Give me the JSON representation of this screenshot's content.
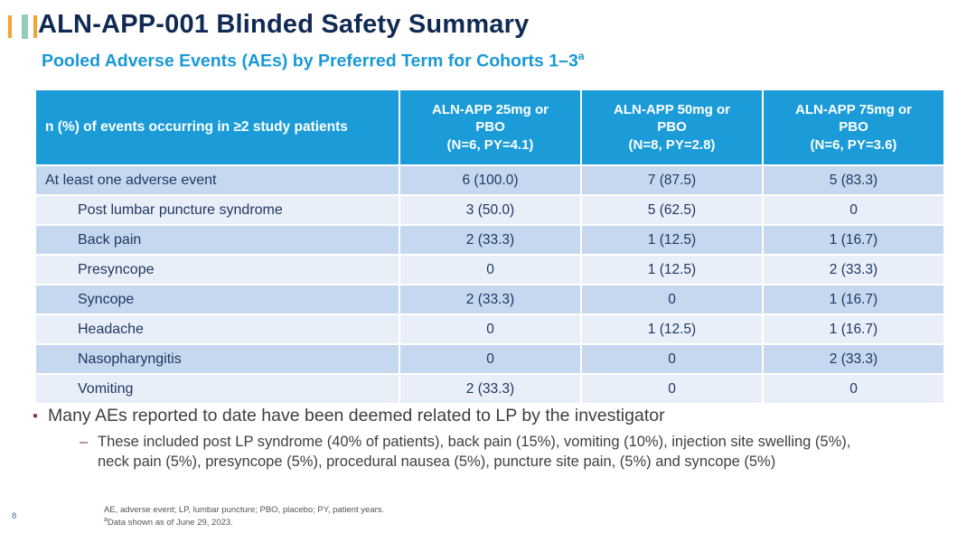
{
  "header": {
    "title": "ALN-APP-001 Blinded Safety Summary",
    "subtitle": "Pooled Adverse Events (AEs) by Preferred Term for Cohorts 1–3",
    "subtitle_sup": "a"
  },
  "logo": {
    "bar_colors": [
      "#F3A233",
      "#93CDB6",
      "#F3A233"
    ]
  },
  "table": {
    "row_header": "n (%) of events occurring in ≥2 study patients",
    "columns": [
      "ALN-APP 25mg or\nPBO\n(N=6, PY=4.1)",
      "ALN-APP 50mg or\nPBO\n(N=8, PY=2.8)",
      "ALN-APP 75mg or\nPBO\n(N=6, PY=3.6)"
    ],
    "rows": [
      {
        "label": "At least one adverse event",
        "values": [
          "6 (100.0)",
          "7 (87.5)",
          "5 (83.3)"
        ]
      },
      {
        "label": "Post lumbar puncture syndrome",
        "values": [
          "3 (50.0)",
          "5 (62.5)",
          "0"
        ]
      },
      {
        "label": "Back pain",
        "values": [
          "2 (33.3)",
          "1 (12.5)",
          "1 (16.7)"
        ]
      },
      {
        "label": "Presyncope",
        "values": [
          "0",
          "1 (12.5)",
          "2 (33.3)"
        ]
      },
      {
        "label": "Syncope",
        "values": [
          "2 (33.3)",
          "0",
          "1 (16.7)"
        ]
      },
      {
        "label": "Headache",
        "values": [
          "0",
          "1 (12.5)",
          "1 (16.7)"
        ]
      },
      {
        "label": "Nasopharyngitis",
        "values": [
          "0",
          "0",
          "2 (33.3)"
        ]
      },
      {
        "label": "Vomiting",
        "values": [
          "2 (33.3)",
          "0",
          "0"
        ]
      }
    ]
  },
  "bullets": {
    "main": "Many AEs reported to date have been deemed related to LP by the investigator",
    "main_marker": "•",
    "sub_marker": "–",
    "sub": "These included post LP syndrome (40% of patients), back pain (15%), vomiting (10%), injection site swelling (5%),\nneck pain (5%), presyncope (5%), procedural nausea (5%), puncture site pain, (5%) and syncope (5%)"
  },
  "footnotes": {
    "abbreviations": "AE, adverse event; LP, lumbar puncture; PBO, placebo; PY, patient years.",
    "data_date_sup": "a",
    "data_date": "Data shown as of June 29, 2023."
  },
  "page_number": "8",
  "colors": {
    "title_navy": "#102A54",
    "subtitle_blue": "#1899D6",
    "table_header_blue": "#1B9CD9",
    "row_medium_blue": "#C6D8EF",
    "row_light_blue": "#E9EFF8",
    "cell_text_navy": "#1F3864",
    "bullet_marker_purple": "#7D3C6B",
    "body_text_gray": "#3F3F3F",
    "footnote_gray": "#555555"
  }
}
